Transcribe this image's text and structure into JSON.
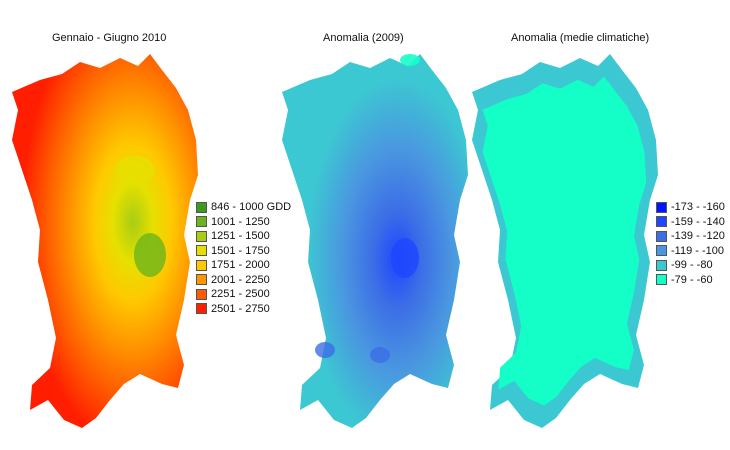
{
  "panels": [
    {
      "title": "Gennaio - Giugno 2010",
      "legend": [
        {
          "label": "846 - 1000 GDD",
          "color": "#3c9a1e"
        },
        {
          "label": "1001 - 1250",
          "color": "#6cb41c"
        },
        {
          "label": "1251 - 1500",
          "color": "#a8cd14"
        },
        {
          "label": "1501 - 1750",
          "color": "#e6e000"
        },
        {
          "label": "1751 - 2000",
          "color": "#ffc800"
        },
        {
          "label": "2001 - 2250",
          "color": "#ff9600"
        },
        {
          "label": "2251 - 2500",
          "color": "#ff5a00"
        },
        {
          "label": "2501 - 2750",
          "color": "#ff1e00"
        }
      ]
    },
    {
      "title": "Anomalia (2009)"
    },
    {
      "title": "Anomalia (medie climatiche)",
      "legend": [
        {
          "label": "-173 - -160",
          "color": "#0014ff"
        },
        {
          "label": "-159 - -140",
          "color": "#1e46ff"
        },
        {
          "label": "-139 - -120",
          "color": "#3c6ee6"
        },
        {
          "label": "-119 - -100",
          "color": "#4a96e0"
        },
        {
          "label": "-99 - -80",
          "color": "#3cc8d2"
        },
        {
          "label": "-79 - -60",
          "color": "#14ffc8"
        }
      ]
    }
  ]
}
